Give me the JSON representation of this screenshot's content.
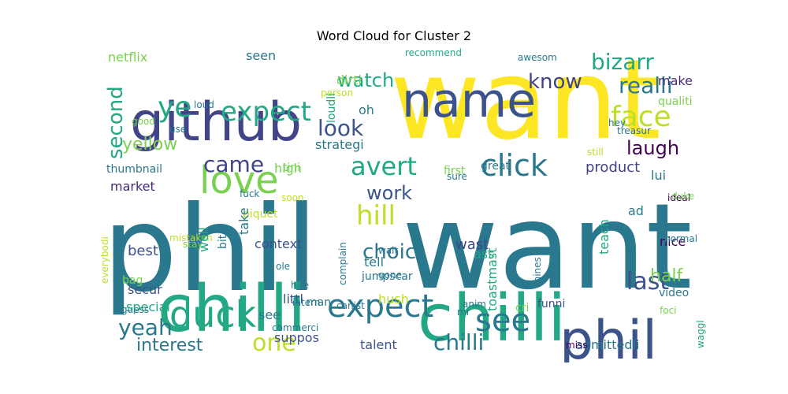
{
  "title": "Word Cloud for Cluster 2",
  "words": [
    {
      "text": "want",
      "color": "#fde725",
      "rotate": false
    },
    {
      "text": "want",
      "color": "#2a788e",
      "rotate": false
    },
    {
      "text": "phil",
      "color": "#2a788e",
      "rotate": false
    },
    {
      "text": "chilli",
      "color": "#22a884",
      "rotate": false
    },
    {
      "text": "chilli",
      "color": "#22a884",
      "rotate": false
    },
    {
      "text": "github",
      "color": "#414487",
      "rotate": false
    },
    {
      "text": "name",
      "color": "#3b528b",
      "rotate": false
    },
    {
      "text": "phil",
      "color": "#3b528b",
      "rotate": false
    },
    {
      "text": "love",
      "color": "#7ad151",
      "rotate": false
    },
    {
      "text": "duck",
      "color": "#22a884",
      "rotate": false
    },
    {
      "text": "expect",
      "color": "#2a788e",
      "rotate": false
    },
    {
      "text": "see",
      "color": "#2a788e",
      "rotate": false
    },
    {
      "text": "click",
      "color": "#2a788e",
      "rotate": false
    },
    {
      "text": "expect",
      "color": "#22a884",
      "rotate": false
    },
    {
      "text": "face",
      "color": "#bddf26",
      "rotate": false
    },
    {
      "text": "ye",
      "color": "#22a884",
      "rotate": false
    },
    {
      "text": "watch",
      "color": "#22a884",
      "rotate": false
    },
    {
      "text": "hill",
      "color": "#bddf26",
      "rotate": false
    },
    {
      "text": "avert",
      "color": "#22a884",
      "rotate": false
    },
    {
      "text": "choic",
      "color": "#2a788e",
      "rotate": false
    },
    {
      "text": "look",
      "color": "#3b528b",
      "rotate": false
    },
    {
      "text": "realli",
      "color": "#2a788e",
      "rotate": false
    },
    {
      "text": "last",
      "color": "#3b528b",
      "rotate": false
    },
    {
      "text": "yeah",
      "color": "#2a788e",
      "rotate": false
    },
    {
      "text": "one",
      "color": "#bddf26",
      "rotate": false
    },
    {
      "text": "chilli",
      "color": "#2a788e",
      "rotate": false
    },
    {
      "text": "work",
      "color": "#3b528b",
      "rotate": false
    },
    {
      "text": "came",
      "color": "#414487",
      "rotate": false
    },
    {
      "text": "bizarr",
      "color": "#22a884",
      "rotate": false
    },
    {
      "text": "know",
      "color": "#414487",
      "rotate": false
    },
    {
      "text": "laugh",
      "color": "#440154",
      "rotate": false
    },
    {
      "text": "second",
      "color": "#22a884",
      "rotate": true
    },
    {
      "text": "yellow",
      "color": "#7ad151",
      "rotate": false
    },
    {
      "text": "interest",
      "color": "#2a788e",
      "rotate": false
    },
    {
      "text": "half",
      "color": "#7ad151",
      "rotate": false
    },
    {
      "text": "product",
      "color": "#414487",
      "rotate": false
    },
    {
      "text": "netflix",
      "color": "#7ad151",
      "rotate": false
    },
    {
      "text": "seen",
      "color": "#2a788e",
      "rotate": false
    },
    {
      "text": "dirti",
      "color": "#7ad151",
      "rotate": false
    },
    {
      "text": "make",
      "color": "#482878",
      "rotate": false
    },
    {
      "text": "oh",
      "color": "#2a788e",
      "rotate": false
    },
    {
      "text": "qualiti",
      "color": "#7ad151",
      "rotate": false
    },
    {
      "text": "strategi",
      "color": "#2a788e",
      "rotate": false
    },
    {
      "text": "tini",
      "color": "#7ad151",
      "rotate": false
    },
    {
      "text": "high",
      "color": "#7ad151",
      "rotate": false
    },
    {
      "text": "market",
      "color": "#482878",
      "rotate": false
    },
    {
      "text": "thumbnail",
      "color": "#2a788e",
      "rotate": false
    },
    {
      "text": "first",
      "color": "#7ad151",
      "rotate": false
    },
    {
      "text": "great",
      "color": "#2a788e",
      "rotate": false
    },
    {
      "text": "still",
      "color": "#bddf26",
      "rotate": false
    },
    {
      "text": "lui",
      "color": "#2a788e",
      "rotate": false
    },
    {
      "text": "ideal",
      "color": "#440154",
      "rotate": false
    },
    {
      "text": "duke",
      "color": "#7ad151",
      "rotate": false
    },
    {
      "text": "nice",
      "color": "#440154",
      "rotate": false
    },
    {
      "text": "ad",
      "color": "#2a788e",
      "rotate": false
    },
    {
      "text": "wast",
      "color": "#414487",
      "rotate": false
    },
    {
      "text": "context",
      "color": "#3b528b",
      "rotate": false
    },
    {
      "text": "best",
      "color": "#3b528b",
      "rotate": false
    },
    {
      "text": "tell",
      "color": "#2a788e",
      "rotate": false
    },
    {
      "text": "ass",
      "color": "#22a884",
      "rotate": false
    },
    {
      "text": "secur",
      "color": "#3b528b",
      "rotate": false
    },
    {
      "text": "special",
      "color": "#22a884",
      "rotate": false
    },
    {
      "text": "bag",
      "color": "#7ad151",
      "rotate": false
    },
    {
      "text": "littl",
      "color": "#3b528b",
      "rotate": false
    },
    {
      "text": "man",
      "color": "#2a788e",
      "rotate": false
    },
    {
      "text": "hush",
      "color": "#bddf26",
      "rotate": false
    },
    {
      "text": "see",
      "color": "#2a788e",
      "rotate": false
    },
    {
      "text": "suppos",
      "color": "#3b528b",
      "rotate": false
    },
    {
      "text": "talent",
      "color": "#3b528b",
      "rotate": false
    },
    {
      "text": "admittedli",
      "color": "#2a788e",
      "rotate": false
    },
    {
      "text": "miss",
      "color": "#440154",
      "rotate": false
    },
    {
      "text": "video",
      "color": "#2a788e",
      "rotate": false
    },
    {
      "text": "foci",
      "color": "#7ad151",
      "rotate": false
    },
    {
      "text": "funni",
      "color": "#3b528b",
      "rotate": false
    },
    {
      "text": "cri",
      "color": "#7ad151",
      "rotate": false
    },
    {
      "text": "anim",
      "color": "#2a788e",
      "rotate": false
    },
    {
      "text": "mr",
      "color": "#2a788e",
      "rotate": false
    },
    {
      "text": "commerci",
      "color": "#2a788e",
      "rotate": false
    },
    {
      "text": "intern",
      "color": "#2a788e",
      "rotate": false
    },
    {
      "text": "canist",
      "color": "#2a788e",
      "rotate": false
    },
    {
      "text": "hire",
      "color": "#2a788e",
      "rotate": false
    },
    {
      "text": "ole",
      "color": "#2a788e",
      "rotate": false
    },
    {
      "text": "wait",
      "color": "#2a788e",
      "rotate": false
    },
    {
      "text": "gone",
      "color": "#2a788e",
      "rotate": false
    },
    {
      "text": "jumpscar",
      "color": "#2a788e",
      "rotate": false
    },
    {
      "text": "piquet",
      "color": "#bddf26",
      "rotate": false
    },
    {
      "text": "soon",
      "color": "#bddf26",
      "rotate": false
    },
    {
      "text": "sure",
      "color": "#2a788e",
      "rotate": false
    },
    {
      "text": "fuck",
      "color": "#2a788e",
      "rotate": false
    },
    {
      "text": "mistaken",
      "color": "#bddf26",
      "rotate": false
    },
    {
      "text": "stay",
      "color": "#7ad151",
      "rotate": false
    },
    {
      "text": "normal",
      "color": "#2a788e",
      "rotate": false
    },
    {
      "text": "guess",
      "color": "#2a788e",
      "rotate": false
    },
    {
      "text": "good",
      "color": "#7ad151",
      "rotate": false
    },
    {
      "text": "use",
      "color": "#2a788e",
      "rotate": false
    },
    {
      "text": "loud",
      "color": "#2a788e",
      "rotate": false
    },
    {
      "text": "person",
      "color": "#bddf26",
      "rotate": false
    },
    {
      "text": "recommend",
      "color": "#22a884",
      "rotate": false
    },
    {
      "text": "awesom",
      "color": "#2a788e",
      "rotate": false
    },
    {
      "text": "hey",
      "color": "#2a788e",
      "rotate": false
    },
    {
      "text": "treasur",
      "color": "#2a788e",
      "rotate": false
    },
    {
      "text": "loudli",
      "color": "#22a884",
      "rotate": true
    },
    {
      "text": "bit",
      "color": "#2a788e",
      "rotate": true
    },
    {
      "text": "take",
      "color": "#2a788e",
      "rotate": true
    },
    {
      "text": "well",
      "color": "#22a884",
      "rotate": true
    },
    {
      "text": "complain",
      "color": "#2a788e",
      "rotate": true
    },
    {
      "text": "toastmast",
      "color": "#22a884",
      "rotate": true
    },
    {
      "text": "teach",
      "color": "#22a884",
      "rotate": true
    },
    {
      "text": "chines",
      "color": "#2a788e",
      "rotate": true
    },
    {
      "text": "waggl",
      "color": "#22a884",
      "rotate": true
    },
    {
      "text": "everybodi",
      "color": "#bddf26",
      "rotate": true
    }
  ]
}
